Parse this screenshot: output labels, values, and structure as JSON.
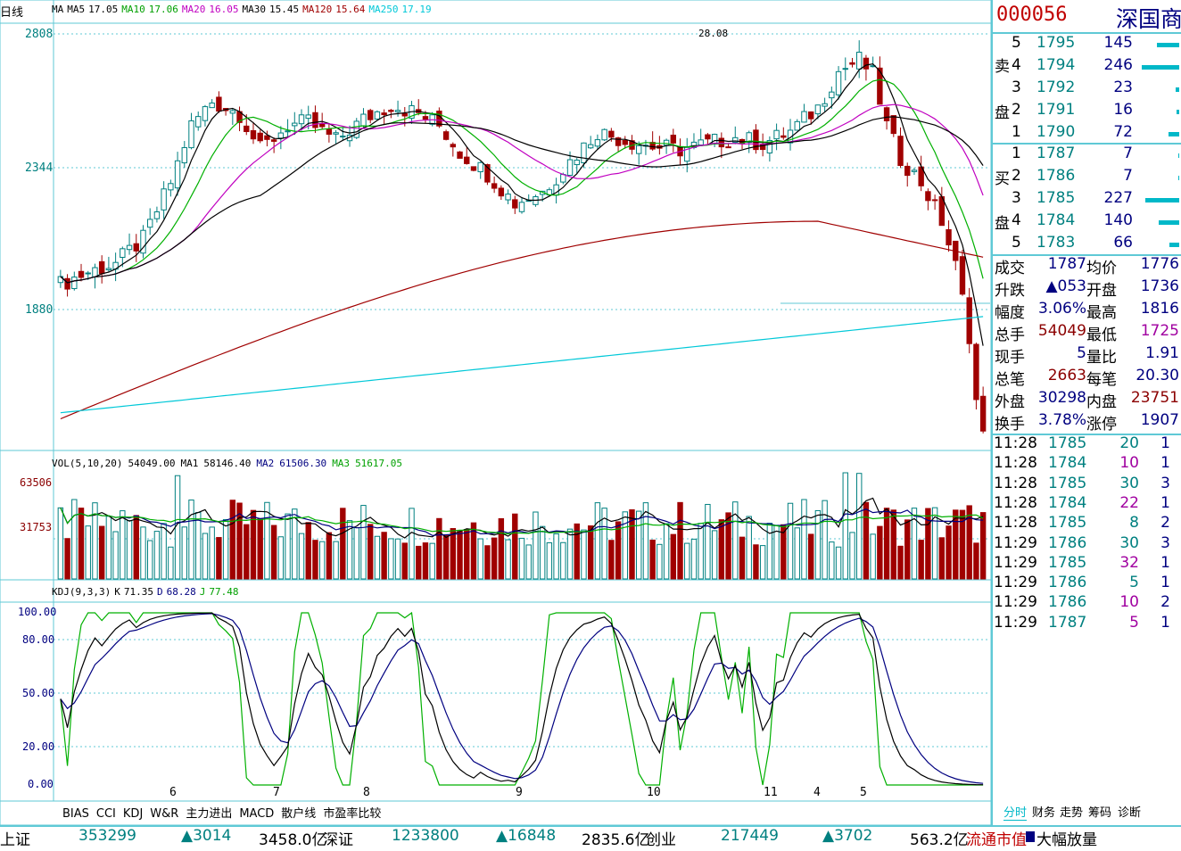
{
  "chart_header": {
    "period": "日线",
    "ma_text": [
      {
        "t": "MA",
        "c": "#000000"
      },
      {
        "t": "MA5",
        "c": "#000000"
      },
      {
        "t": "17.05",
        "c": "#000000"
      },
      {
        "t": "MA10",
        "c": "#00a000"
      },
      {
        "t": "17.06",
        "c": "#00a000"
      },
      {
        "t": "MA20",
        "c": "#c000c0"
      },
      {
        "t": "16.05",
        "c": "#c000c0"
      },
      {
        "t": "MA30",
        "c": "#000000"
      },
      {
        "t": "15.45",
        "c": "#000000"
      },
      {
        "t": "MA120",
        "c": "#a00000"
      },
      {
        "t": "15.64",
        "c": "#a00000"
      },
      {
        "t": "MA250",
        "c": "#00c8d8"
      },
      {
        "t": "17.19",
        "c": "#00c8d8"
      }
    ]
  },
  "price_axis": [
    "2808",
    "2344",
    "1880"
  ],
  "peak_label": "28.08",
  "vol_header": [
    {
      "t": "VOL(5,10,20)",
      "c": "#000000"
    },
    {
      "t": "54049.00",
      "c": "#000000"
    },
    {
      "t": "MA1",
      "c": "#000000"
    },
    {
      "t": "58146.40",
      "c": "#000000"
    },
    {
      "t": "MA2",
      "c": "#000080"
    },
    {
      "t": "61506.30",
      "c": "#000080"
    },
    {
      "t": "MA3",
      "c": "#00a000"
    },
    {
      "t": "51617.05",
      "c": "#00a000"
    }
  ],
  "vol_axis": [
    "63506",
    "31753"
  ],
  "kdj_header": [
    {
      "t": "KDJ(9,3,3)",
      "c": "#000000"
    },
    {
      "t": "K",
      "c": "#000000"
    },
    {
      "t": "71.35",
      "c": "#000000"
    },
    {
      "t": "D",
      "c": "#000080"
    },
    {
      "t": "68.28",
      "c": "#000080"
    },
    {
      "t": "J",
      "c": "#00a000"
    },
    {
      "t": "77.48",
      "c": "#00a000"
    }
  ],
  "kdj_axis": [
    "100.00",
    "80.00",
    "50.00",
    "20.00",
    "0.00"
  ],
  "month_labels": [
    {
      "t": "6",
      "x": 194
    },
    {
      "t": "7",
      "x": 310
    },
    {
      "t": "8",
      "x": 411
    },
    {
      "t": "9",
      "x": 582
    },
    {
      "t": "10",
      "x": 729
    },
    {
      "t": "11",
      "x": 860
    },
    {
      "t": "4",
      "x": 916
    },
    {
      "t": "5",
      "x": 968
    }
  ],
  "indicator_tabs": [
    "BIAS",
    "CCI",
    "KDJ",
    "W&R",
    "主力进出",
    "MACD",
    "散户线",
    "市盈率比较"
  ],
  "quote": {
    "code": "000056",
    "name": "深国商",
    "sell_side_label": [
      "卖",
      "盘"
    ],
    "buy_side_label": [
      "买",
      "盘"
    ],
    "sell": [
      {
        "lvl": "5",
        "price": "1795",
        "vol": "145"
      },
      {
        "lvl": "4",
        "price": "1794",
        "vol": "246"
      },
      {
        "lvl": "3",
        "price": "1792",
        "vol": "23"
      },
      {
        "lvl": "2",
        "price": "1791",
        "vol": "16"
      },
      {
        "lvl": "1",
        "price": "1790",
        "vol": "72"
      }
    ],
    "buy": [
      {
        "lvl": "1",
        "price": "1787",
        "vol": "7"
      },
      {
        "lvl": "2",
        "price": "1786",
        "vol": "7"
      },
      {
        "lvl": "3",
        "price": "1785",
        "vol": "227"
      },
      {
        "lvl": "4",
        "price": "1784",
        "vol": "140"
      },
      {
        "lvl": "5",
        "price": "1783",
        "vol": "66"
      }
    ],
    "stats": [
      {
        "l1": "成交",
        "v1": "1787",
        "c1": "#000080",
        "l2": "均价",
        "v2": "1776",
        "c2": "#000080"
      },
      {
        "l1": "升跌",
        "v1": "▲053",
        "c1": "#000080",
        "l2": "开盘",
        "v2": "1736",
        "c2": "#000080"
      },
      {
        "l1": "幅度",
        "v1": "3.06%",
        "c1": "#000080",
        "l2": "最高",
        "v2": "1816",
        "c2": "#000080"
      },
      {
        "l1": "总手",
        "v1": "54049",
        "c1": "#8b0000",
        "l2": "最低",
        "v2": "1725",
        "c2": "#a000a0"
      },
      {
        "l1": "现手",
        "v1": "5",
        "c1": "#000080",
        "l2": "量比",
        "v2": "1.91",
        "c2": "#000080"
      },
      {
        "l1": "总笔",
        "v1": "2663",
        "c1": "#8b0000",
        "l2": "每笔",
        "v2": "20.30",
        "c2": "#000080"
      },
      {
        "l1": "外盘",
        "v1": "30298",
        "c1": "#000080",
        "l2": "内盘",
        "v2": "23751",
        "c2": "#8b0000"
      },
      {
        "l1": "换手",
        "v1": "3.78%",
        "c1": "#000080",
        "l2": "涨停",
        "v2": "1907",
        "c2": "#000080"
      }
    ],
    "ticks": [
      {
        "time": "11:28",
        "price": "1785",
        "vol": "20",
        "vc": "#008080",
        "n": "1"
      },
      {
        "time": "11:28",
        "price": "1784",
        "vol": "10",
        "vc": "#a000a0",
        "n": "1"
      },
      {
        "time": "11:28",
        "price": "1785",
        "vol": "30",
        "vc": "#008080",
        "n": "3"
      },
      {
        "time": "11:28",
        "price": "1784",
        "vol": "22",
        "vc": "#a000a0",
        "n": "1"
      },
      {
        "time": "11:28",
        "price": "1785",
        "vol": "8",
        "vc": "#008080",
        "n": "2"
      },
      {
        "time": "11:29",
        "price": "1786",
        "vol": "30",
        "vc": "#008080",
        "n": "3"
      },
      {
        "time": "11:29",
        "price": "1785",
        "vol": "32",
        "vc": "#a000a0",
        "n": "1"
      },
      {
        "time": "11:29",
        "price": "1786",
        "vol": "5",
        "vc": "#008080",
        "n": "1"
      },
      {
        "time": "11:29",
        "price": "1786",
        "vol": "10",
        "vc": "#a000a0",
        "n": "2"
      },
      {
        "time": "11:29",
        "price": "1787",
        "vol": "5",
        "vc": "#a000a0",
        "n": "1"
      }
    ],
    "tabs": [
      "分时",
      "财务",
      "走势",
      "筹码",
      "诊断"
    ]
  },
  "status_bar": [
    {
      "t": "上证",
      "c": "#000000"
    },
    {
      "t": "353299",
      "c": "#008080"
    },
    {
      "t": "▲3014",
      "c": "#008080"
    },
    {
      "t": "3458.0亿",
      "c": "#000000"
    },
    {
      "t": "深证",
      "c": "#000000"
    },
    {
      "t": "1233800",
      "c": "#008080"
    },
    {
      "t": "▲16848",
      "c": "#008080"
    },
    {
      "t": "2835.6亿",
      "c": "#000000"
    },
    {
      "t": "创业",
      "c": "#000000"
    },
    {
      "t": "217449",
      "c": "#008080"
    },
    {
      "t": "▲3702",
      "c": "#008080"
    },
    {
      "t": "563.2亿",
      "c": "#000000"
    },
    {
      "t": "流通市值",
      "c": "#c00000"
    },
    {
      "t": "大幅放量",
      "c": "#000000"
    }
  ]
}
